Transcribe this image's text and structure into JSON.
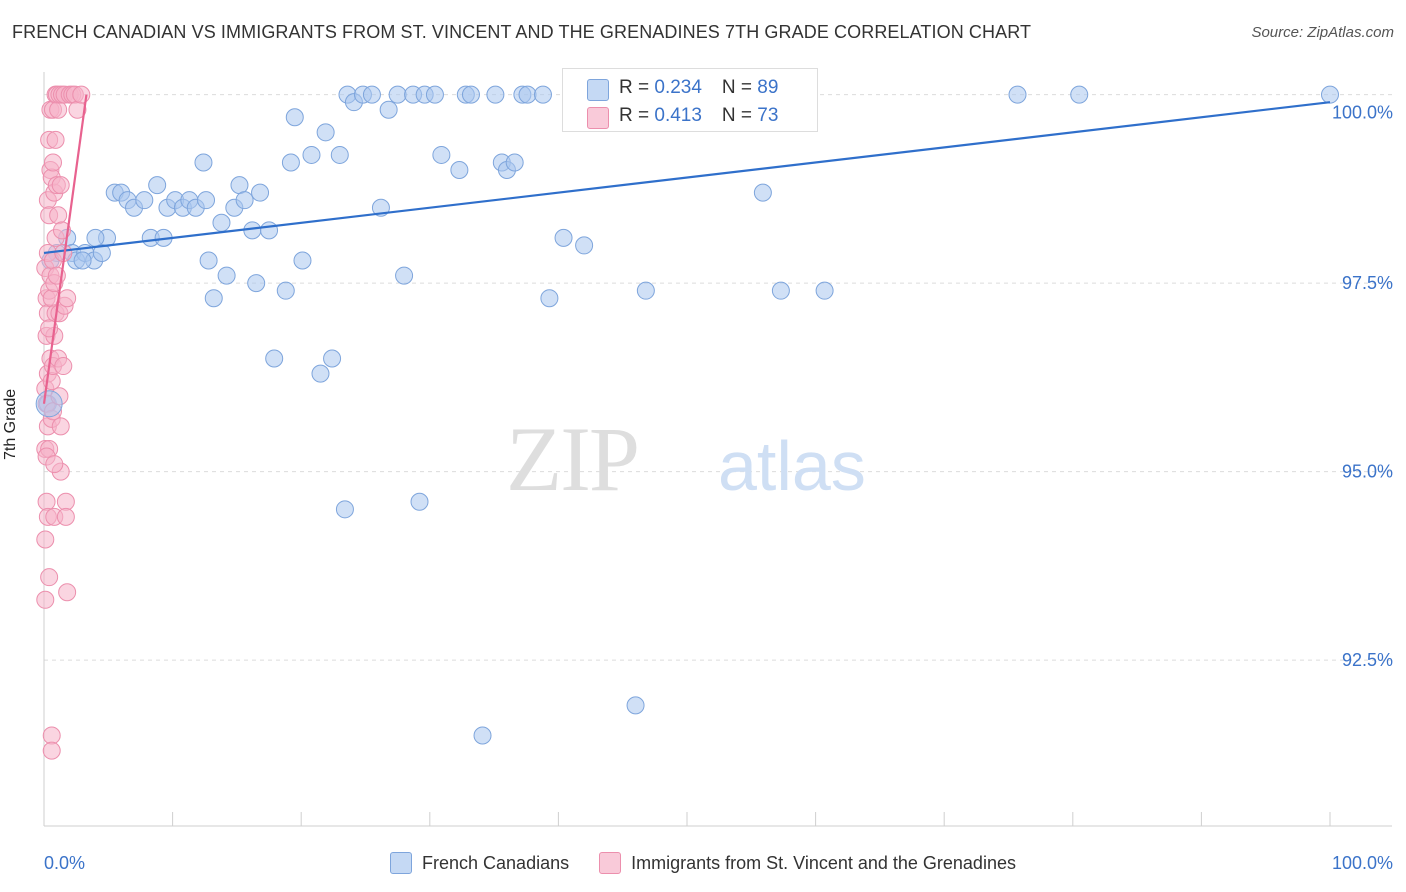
{
  "title": "FRENCH CANADIAN VS IMMIGRANTS FROM ST. VINCENT AND THE GRENADINES 7TH GRADE CORRELATION CHART",
  "source": "Source: ZipAtlas.com",
  "watermark": {
    "zip": "ZIP",
    "atlas": "atlas"
  },
  "stats": [
    {
      "r_label": "R = ",
      "r_value": "0.234",
      "n_label": "N = ",
      "n_value": "89",
      "color": "#a9c6ee"
    },
    {
      "r_label": "R = ",
      "r_value": "0.413",
      "n_label": "N = ",
      "n_value": "73",
      "color": "#f5b3c8"
    }
  ],
  "legend": [
    {
      "label": "French Canadians",
      "color": "#a9c6ee"
    },
    {
      "label": "Immigrants from St. Vincent and the Grenadines",
      "color": "#f5b3c8"
    }
  ],
  "chart_data": {
    "type": "scatter",
    "title": "FRENCH CANADIAN VS IMMIGRANTS FROM ST. VINCENT AND THE GRENADINES 7TH GRADE CORRELATION CHART",
    "xlabel": "",
    "ylabel": "7th Grade",
    "xlim": [
      0,
      100
    ],
    "ylim": [
      90.3,
      100.3
    ],
    "x_tick_labels": [
      "0.0%",
      "100.0%"
    ],
    "y_ticks": [
      92.5,
      95.0,
      97.5,
      100.0
    ],
    "y_tick_labels": [
      "92.5%",
      "95.0%",
      "97.5%",
      "100.0%"
    ],
    "grid": true,
    "series": [
      {
        "name": "French Canadians",
        "color": "#a9c6ee",
        "stroke": "#7ea5dc",
        "trend_color": "#2f6fcb",
        "trend": {
          "x": [
            0,
            100
          ],
          "y": [
            97.9,
            99.9
          ]
        },
        "points": [
          [
            0.3,
            95.9
          ],
          [
            1.0,
            97.9
          ],
          [
            1.8,
            98.1
          ],
          [
            2.2,
            97.9
          ],
          [
            2.5,
            97.8
          ],
          [
            3.2,
            97.9
          ],
          [
            3.9,
            97.8
          ],
          [
            4.5,
            97.9
          ],
          [
            4.9,
            98.1
          ],
          [
            5.5,
            98.7
          ],
          [
            6.0,
            98.7
          ],
          [
            6.5,
            98.6
          ],
          [
            7.0,
            98.5
          ],
          [
            7.8,
            98.6
          ],
          [
            8.3,
            98.1
          ],
          [
            8.8,
            98.8
          ],
          [
            9.3,
            98.1
          ],
          [
            9.6,
            98.5
          ],
          [
            10.2,
            98.6
          ],
          [
            10.8,
            98.5
          ],
          [
            11.3,
            98.6
          ],
          [
            11.8,
            98.5
          ],
          [
            12.4,
            99.1
          ],
          [
            12.6,
            98.6
          ],
          [
            12.8,
            97.8
          ],
          [
            13.2,
            97.3
          ],
          [
            13.8,
            98.3
          ],
          [
            14.2,
            97.6
          ],
          [
            14.8,
            98.5
          ],
          [
            15.2,
            98.8
          ],
          [
            15.6,
            98.6
          ],
          [
            16.2,
            98.2
          ],
          [
            16.5,
            97.5
          ],
          [
            16.8,
            98.7
          ],
          [
            17.5,
            98.2
          ],
          [
            17.9,
            96.5
          ],
          [
            18.8,
            97.4
          ],
          [
            19.2,
            99.1
          ],
          [
            19.5,
            99.7
          ],
          [
            20.1,
            97.8
          ],
          [
            20.8,
            99.2
          ],
          [
            21.5,
            96.3
          ],
          [
            21.9,
            99.5
          ],
          [
            22.4,
            96.5
          ],
          [
            23.0,
            99.2
          ],
          [
            23.4,
            94.5
          ],
          [
            23.6,
            100.0
          ],
          [
            24.1,
            99.9
          ],
          [
            24.8,
            100.0
          ],
          [
            25.5,
            100.0
          ],
          [
            26.2,
            98.5
          ],
          [
            26.8,
            99.8
          ],
          [
            27.5,
            100.0
          ],
          [
            28.0,
            97.6
          ],
          [
            28.7,
            100.0
          ],
          [
            29.2,
            94.6
          ],
          [
            29.6,
            100.0
          ],
          [
            30.4,
            100.0
          ],
          [
            30.9,
            99.2
          ],
          [
            32.3,
            99.0
          ],
          [
            32.8,
            100.0
          ],
          [
            33.2,
            100.0
          ],
          [
            34.1,
            91.5
          ],
          [
            35.1,
            100.0
          ],
          [
            35.6,
            99.1
          ],
          [
            36.0,
            99.0
          ],
          [
            36.6,
            99.1
          ],
          [
            37.2,
            100.0
          ],
          [
            37.6,
            100.0
          ],
          [
            38.8,
            100.0
          ],
          [
            39.3,
            97.3
          ],
          [
            40.4,
            98.1
          ],
          [
            42.0,
            98.0
          ],
          [
            44.8,
            100.0
          ],
          [
            46.0,
            91.9
          ],
          [
            46.8,
            97.4
          ],
          [
            47.9,
            100.0
          ],
          [
            52.3,
            100.0
          ],
          [
            55.4,
            100.0
          ],
          [
            55.9,
            98.7
          ],
          [
            57.0,
            100.0
          ],
          [
            57.3,
            97.4
          ],
          [
            60.7,
            97.4
          ],
          [
            75.7,
            100.0
          ],
          [
            80.5,
            100.0
          ],
          [
            100.0,
            100.0
          ],
          [
            0.5,
            97.8
          ],
          [
            3.0,
            97.8
          ],
          [
            4.0,
            98.1
          ]
        ]
      },
      {
        "name": "Immigrants from St. Vincent and the Grenadines",
        "color": "#f5b3c8",
        "stroke": "#ec8fad",
        "trend_color": "#e8628f",
        "trend": {
          "x": [
            0,
            3.3
          ],
          "y": [
            95.9,
            100.0
          ]
        },
        "points": [
          [
            0.1,
            97.7
          ],
          [
            0.1,
            96.1
          ],
          [
            0.1,
            95.3
          ],
          [
            0.1,
            94.1
          ],
          [
            0.1,
            93.3
          ],
          [
            0.2,
            97.3
          ],
          [
            0.2,
            96.8
          ],
          [
            0.2,
            95.9
          ],
          [
            0.2,
            94.6
          ],
          [
            0.3,
            98.6
          ],
          [
            0.3,
            97.9
          ],
          [
            0.3,
            97.1
          ],
          [
            0.3,
            96.3
          ],
          [
            0.3,
            95.6
          ],
          [
            0.3,
            94.4
          ],
          [
            0.4,
            99.4
          ],
          [
            0.4,
            98.4
          ],
          [
            0.4,
            97.4
          ],
          [
            0.4,
            95.3
          ],
          [
            0.4,
            93.6
          ],
          [
            0.5,
            99.8
          ],
          [
            0.5,
            99.0
          ],
          [
            0.5,
            97.6
          ],
          [
            0.5,
            96.5
          ],
          [
            0.6,
            98.9
          ],
          [
            0.6,
            97.3
          ],
          [
            0.6,
            96.2
          ],
          [
            0.6,
            95.7
          ],
          [
            0.6,
            91.5
          ],
          [
            0.6,
            91.3
          ],
          [
            0.7,
            99.8
          ],
          [
            0.7,
            99.1
          ],
          [
            0.7,
            97.8
          ],
          [
            0.7,
            96.4
          ],
          [
            0.7,
            95.8
          ],
          [
            0.8,
            98.7
          ],
          [
            0.8,
            97.5
          ],
          [
            0.8,
            96.8
          ],
          [
            0.8,
            94.4
          ],
          [
            0.9,
            100.0
          ],
          [
            0.9,
            99.4
          ],
          [
            0.9,
            98.1
          ],
          [
            0.9,
            97.1
          ],
          [
            1.0,
            100.0
          ],
          [
            1.0,
            98.8
          ],
          [
            1.0,
            97.6
          ],
          [
            1.1,
            99.8
          ],
          [
            1.1,
            98.4
          ],
          [
            1.1,
            96.5
          ],
          [
            1.2,
            100.0
          ],
          [
            1.2,
            97.1
          ],
          [
            1.3,
            98.8
          ],
          [
            1.3,
            95.6
          ],
          [
            1.3,
            95.0
          ],
          [
            1.4,
            100.0
          ],
          [
            1.4,
            98.2
          ],
          [
            1.5,
            97.9
          ],
          [
            1.5,
            96.4
          ],
          [
            1.6,
            100.0
          ],
          [
            1.6,
            97.2
          ],
          [
            1.7,
            94.6
          ],
          [
            1.7,
            94.4
          ],
          [
            1.8,
            97.3
          ],
          [
            1.8,
            93.4
          ],
          [
            2.0,
            100.0
          ],
          [
            2.2,
            100.0
          ],
          [
            2.4,
            100.0
          ],
          [
            2.6,
            99.8
          ],
          [
            2.9,
            100.0
          ],
          [
            0.2,
            95.2
          ],
          [
            0.4,
            96.9
          ],
          [
            0.8,
            95.1
          ],
          [
            1.2,
            96.0
          ]
        ]
      }
    ]
  }
}
